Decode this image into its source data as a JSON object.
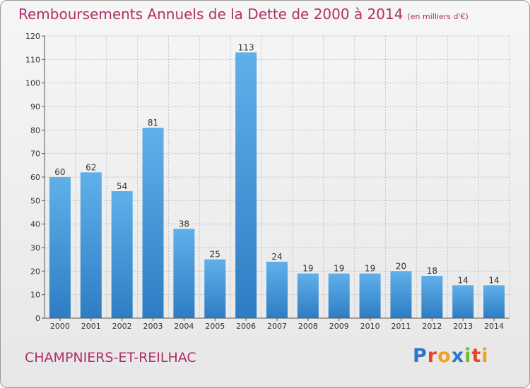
{
  "header": {
    "title": "Remboursements Annuels de la Dette de 2000 à 2014",
    "unit": "(en milliers d'€)"
  },
  "footer": {
    "commune": "CHAMPNIERS-ET-REILHAC",
    "brand": [
      "P",
      "r",
      "o",
      "x",
      "i",
      "t",
      "i"
    ],
    "brand_colors": [
      "#2e75c9",
      "#e8442c",
      "#f0a21d",
      "#2e75c9",
      "#78b82a",
      "#e8442c",
      "#f0a21d"
    ]
  },
  "colors": {
    "bar_top": "#5fb0ea",
    "bar_bottom": "#2e7dc4",
    "grid": "#c4c4c4",
    "axis": "#555555",
    "title": "#b0306a"
  },
  "chart_data": {
    "type": "bar",
    "title": "Remboursements Annuels de la Dette de 2000 à 2014",
    "ylabel": "en milliers d'€",
    "xlabel": "",
    "categories": [
      "2000",
      "2001",
      "2002",
      "2003",
      "2004",
      "2005",
      "2006",
      "2007",
      "2008",
      "2009",
      "2010",
      "2011",
      "2012",
      "2013",
      "2014"
    ],
    "values": [
      60,
      62,
      54,
      81,
      38,
      25,
      113,
      24,
      19,
      19,
      19,
      20,
      18,
      14,
      14
    ],
    "ylim": [
      0,
      120
    ],
    "yticks": [
      0,
      10,
      20,
      30,
      40,
      50,
      60,
      70,
      80,
      90,
      100,
      110,
      120
    ],
    "grid": true
  }
}
